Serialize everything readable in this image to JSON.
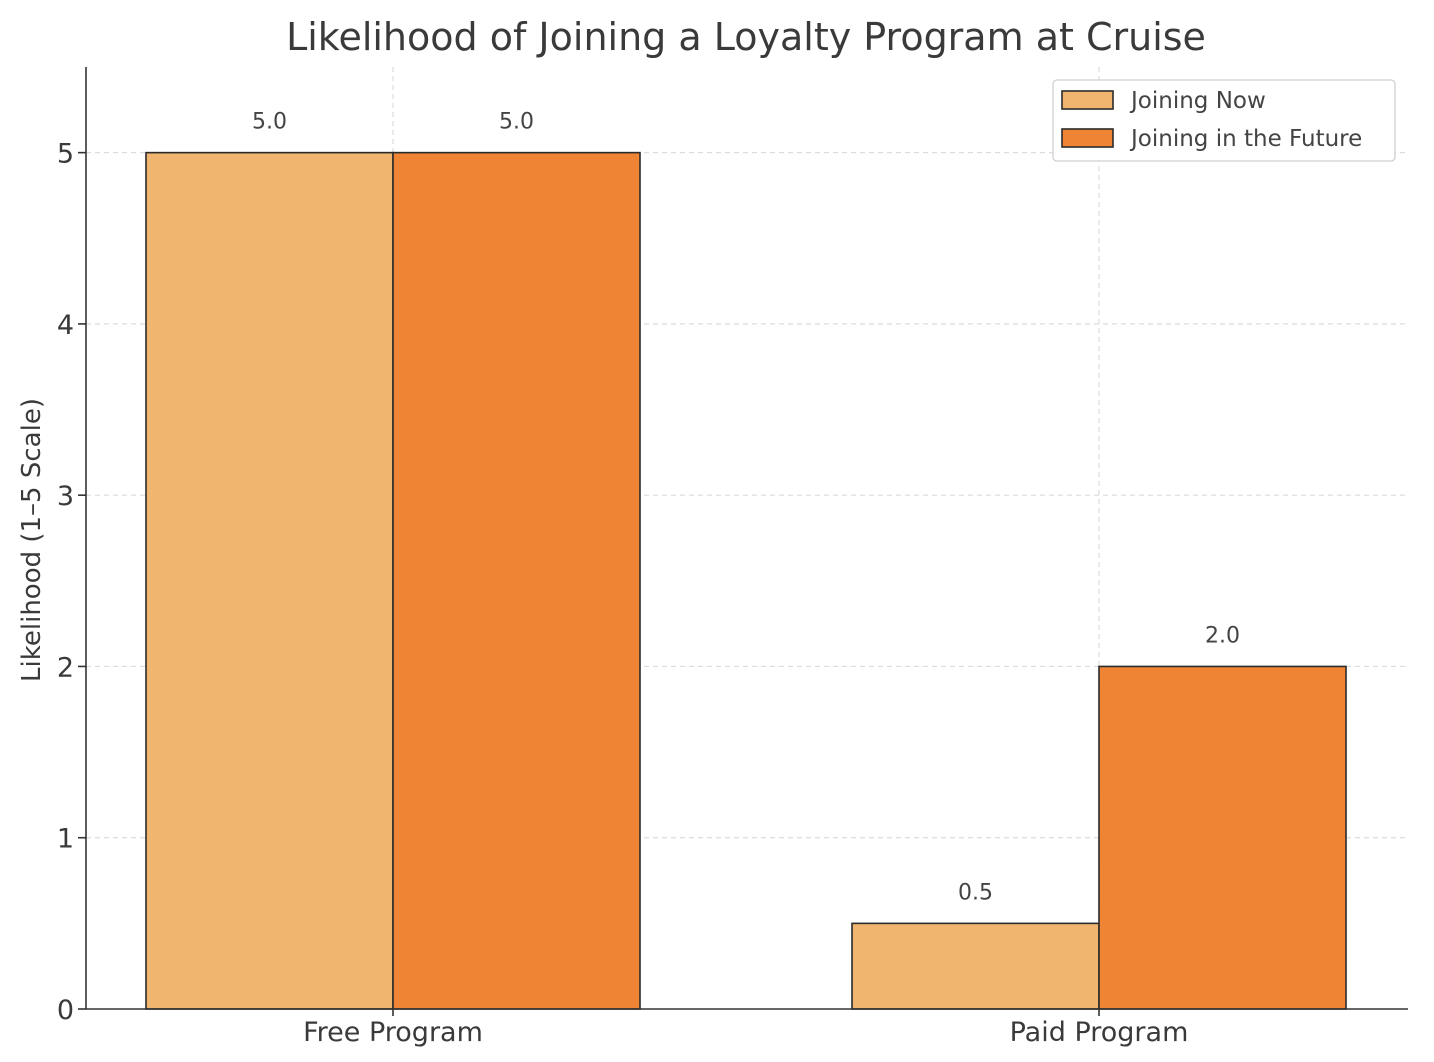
{
  "chart_data": {
    "type": "bar",
    "title": "Likelihood of Joining a Loyalty Program at Cruise",
    "xlabel": "",
    "ylabel": "Likelihood (1–5 Scale)",
    "categories": [
      "Free Program",
      "Paid Program"
    ],
    "series": [
      {
        "name": "Joining Now",
        "values": [
          5.0,
          0.5
        ],
        "labels": [
          "5.0",
          "0.5"
        ],
        "color": "#f0b56e"
      },
      {
        "name": "Joining in the Future",
        "values": [
          5.0,
          2.0
        ],
        "labels": [
          "5.0",
          "2.0"
        ],
        "color": "#ee8434"
      }
    ],
    "ylim": [
      0,
      5.5
    ],
    "yticks": [
      0,
      1,
      2,
      3,
      4,
      5
    ],
    "ytick_labels": [
      "0",
      "1",
      "2",
      "3",
      "4",
      "5"
    ],
    "grid": true,
    "legend_position": "top-right"
  }
}
